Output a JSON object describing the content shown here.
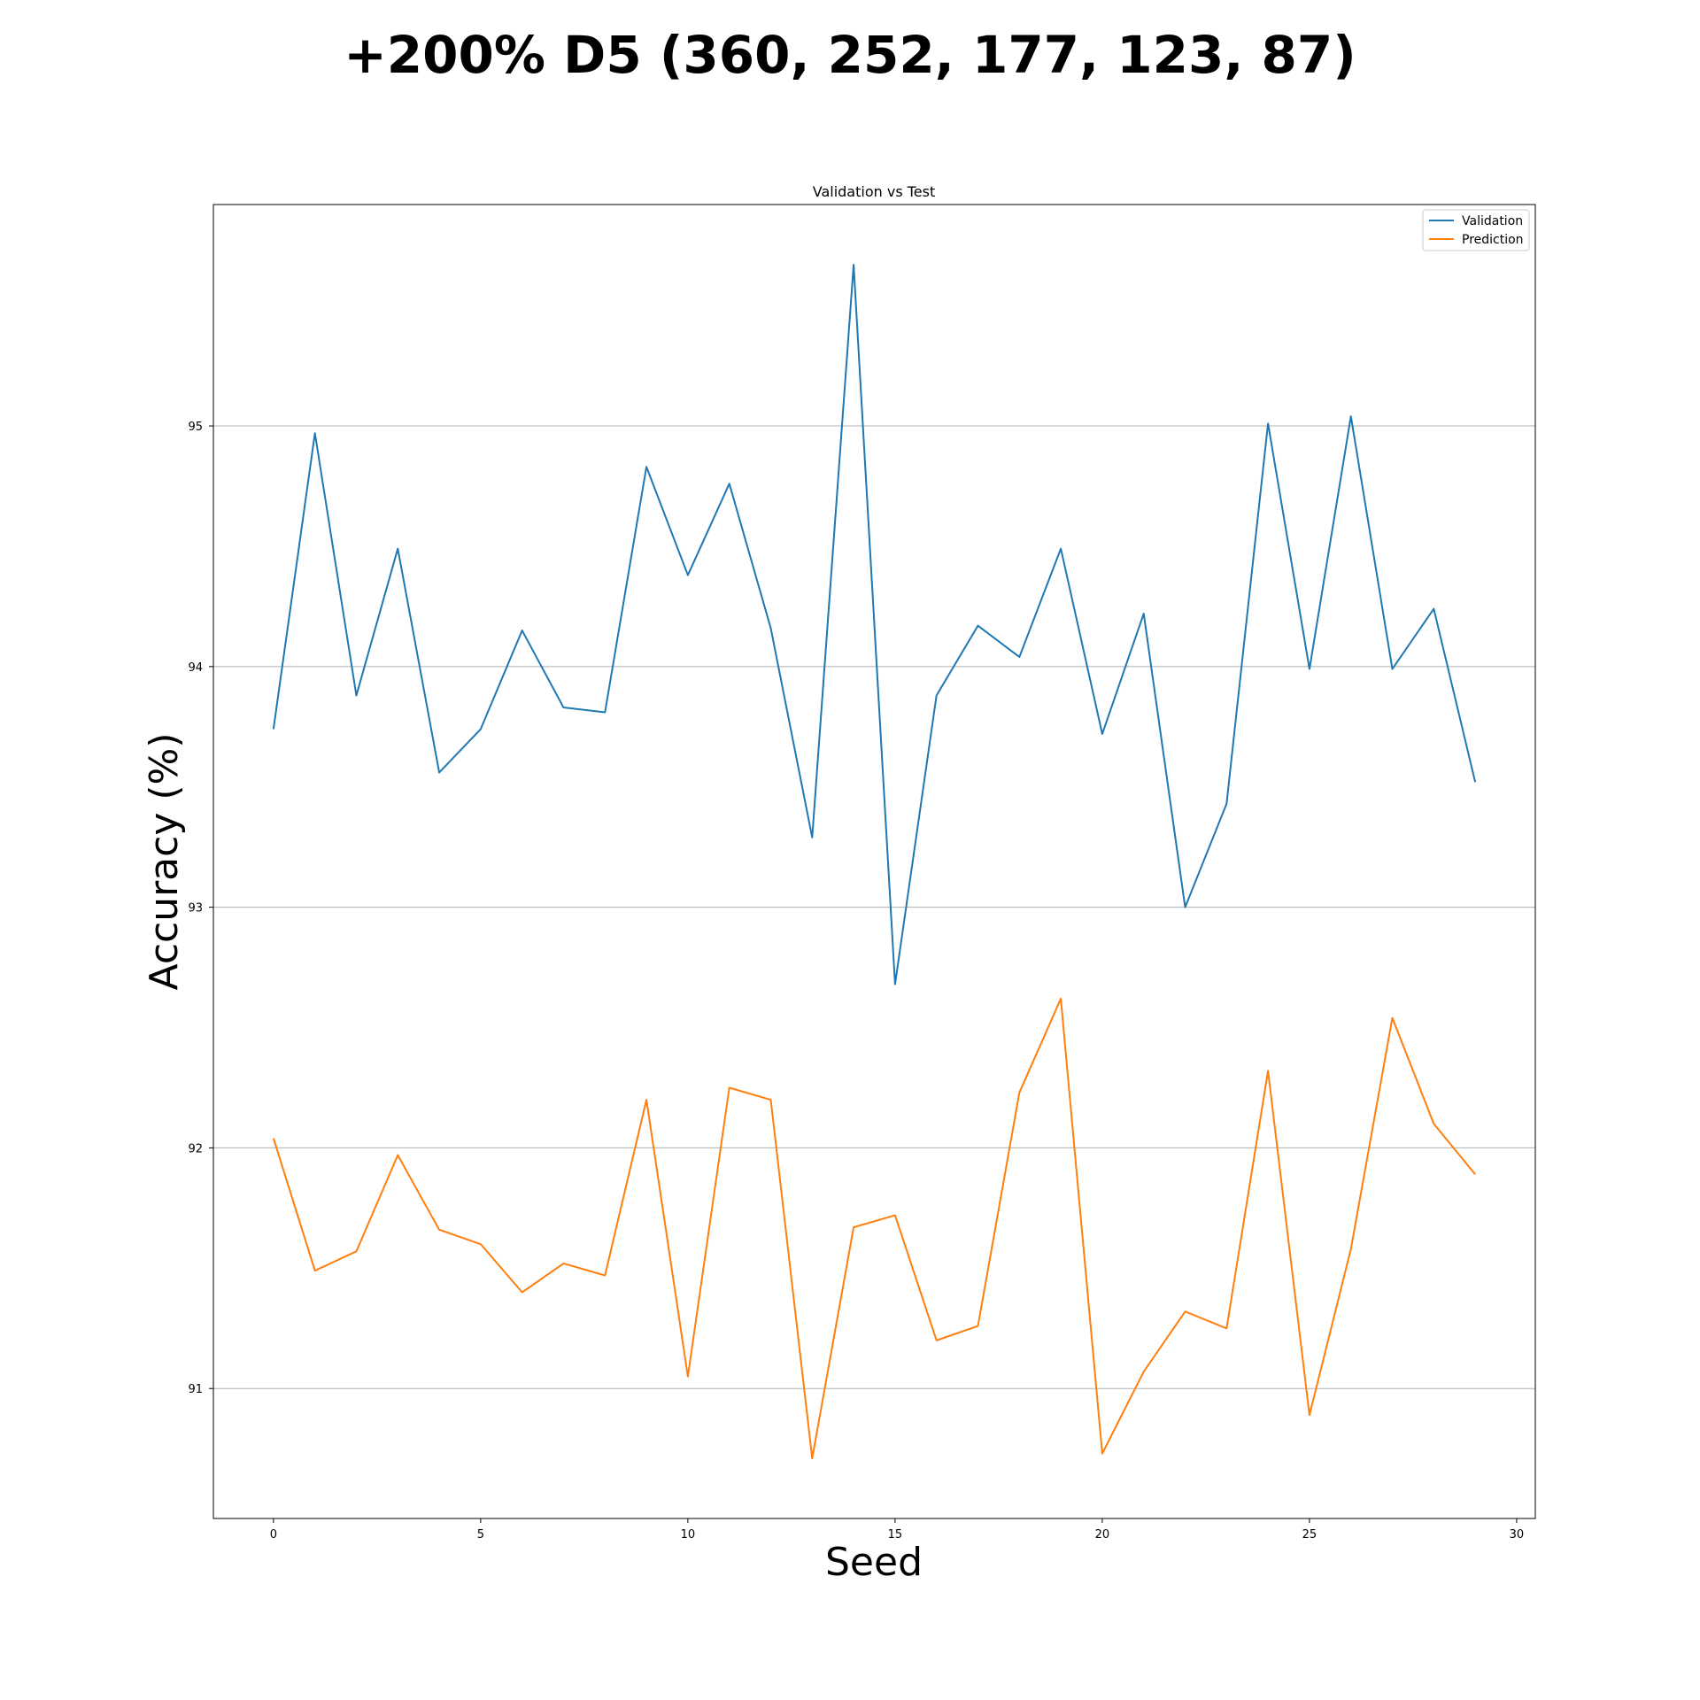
{
  "figure": {
    "suptitle": "+200% D5 (360, 252, 177, 123, 87)"
  },
  "chart_data": {
    "type": "line",
    "title": "Validation vs Test",
    "xlabel": "Seed",
    "ylabel": "Accuracy (%)",
    "xlim": [
      -1.45,
      30.45
    ],
    "ylim": [
      90.46,
      95.92
    ],
    "xticks": [
      0,
      5,
      10,
      15,
      20,
      25,
      30
    ],
    "yticks": [
      91,
      92,
      93,
      94,
      95
    ],
    "grid": "y-major",
    "legend_position": "upper right",
    "x": [
      0,
      1,
      2,
      3,
      4,
      5,
      6,
      7,
      8,
      9,
      10,
      11,
      12,
      13,
      14,
      15,
      16,
      17,
      18,
      19,
      20,
      21,
      22,
      23,
      24,
      25,
      26,
      27,
      28,
      29
    ],
    "series": [
      {
        "name": "Validation",
        "color": "#1f77b4",
        "values": [
          93.74,
          94.97,
          93.88,
          94.49,
          93.56,
          93.74,
          94.15,
          93.83,
          93.81,
          94.83,
          94.38,
          94.76,
          94.16,
          93.29,
          95.67,
          92.68,
          93.88,
          94.17,
          94.04,
          94.49,
          93.72,
          94.22,
          93.0,
          93.43,
          95.01,
          93.99,
          95.04,
          93.99,
          94.24,
          93.52
        ]
      },
      {
        "name": "Prediction",
        "color": "#ff7f0e",
        "values": [
          92.04,
          91.49,
          91.57,
          91.97,
          91.66,
          91.6,
          91.4,
          91.52,
          91.47,
          92.2,
          91.05,
          92.25,
          92.2,
          90.71,
          91.67,
          91.72,
          91.2,
          91.26,
          92.23,
          92.62,
          90.73,
          91.07,
          91.32,
          91.25,
          92.32,
          90.89,
          91.58,
          92.54,
          92.1,
          91.89
        ]
      }
    ]
  }
}
